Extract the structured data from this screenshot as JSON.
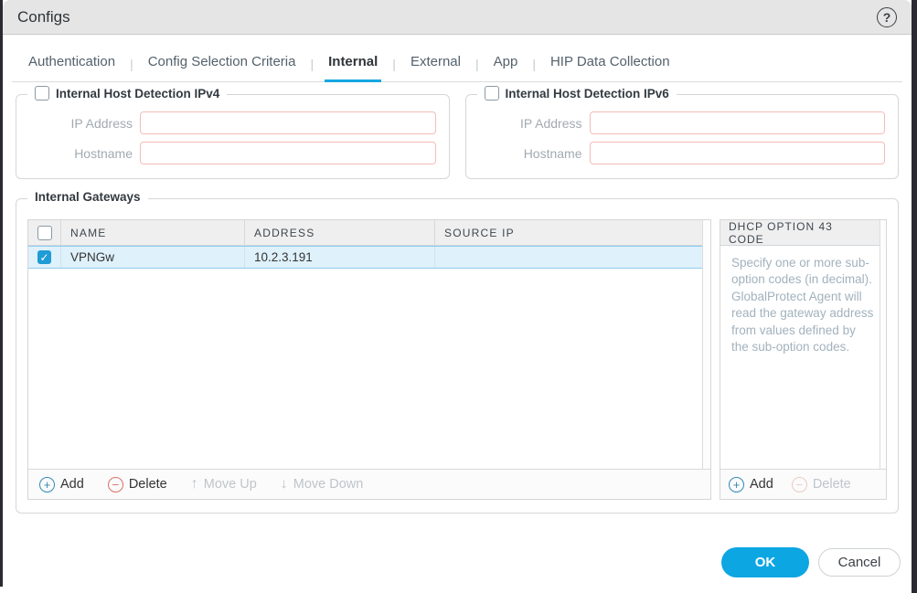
{
  "dialog": {
    "title": "Configs"
  },
  "icons": {
    "help": "?",
    "check": "✓",
    "add": "+",
    "delete": "−",
    "move_up": "↑",
    "move_down": "↓"
  },
  "tabs": [
    {
      "label": "Authentication",
      "active": false
    },
    {
      "label": "Config Selection Criteria",
      "active": false
    },
    {
      "label": "Internal",
      "active": true
    },
    {
      "label": "External",
      "active": false
    },
    {
      "label": "App",
      "active": false
    },
    {
      "label": "HIP Data Collection",
      "active": false
    }
  ],
  "ipv4_group": {
    "legend": "Internal Host Detection IPv4",
    "checked": false,
    "ip_label": "IP Address",
    "ip_value": "",
    "hostname_label": "Hostname",
    "hostname_value": ""
  },
  "ipv6_group": {
    "legend": "Internal Host Detection IPv6",
    "checked": false,
    "ip_label": "IP Address",
    "ip_value": "",
    "hostname_label": "Hostname",
    "hostname_value": ""
  },
  "gateways": {
    "legend": "Internal Gateways",
    "columns": {
      "name": "NAME",
      "address": "ADDRESS",
      "source_ip": "SOURCE IP"
    },
    "rows": [
      {
        "checked": true,
        "name": "VPNGw",
        "address": "10.2.3.191",
        "source_ip": ""
      }
    ],
    "toolbar": {
      "add": "Add",
      "delete": "Delete",
      "move_up": "Move Up",
      "move_down": "Move Down"
    }
  },
  "dhcp_panel": {
    "header": "DHCP OPTION 43 CODE",
    "help_text": "Specify one or more sub-option codes (in decimal). GlobalProtect Agent will read the gateway address from values defined by the sub-option codes.",
    "toolbar": {
      "add": "Add",
      "delete": "Delete"
    }
  },
  "footer": {
    "ok": "OK",
    "cancel": "Cancel"
  },
  "colors": {
    "accent": "#15a7e1",
    "selected_row": "#dff1fb",
    "error_border": "#f3bcb6",
    "checkbox_checked": "#1f9cd5"
  }
}
